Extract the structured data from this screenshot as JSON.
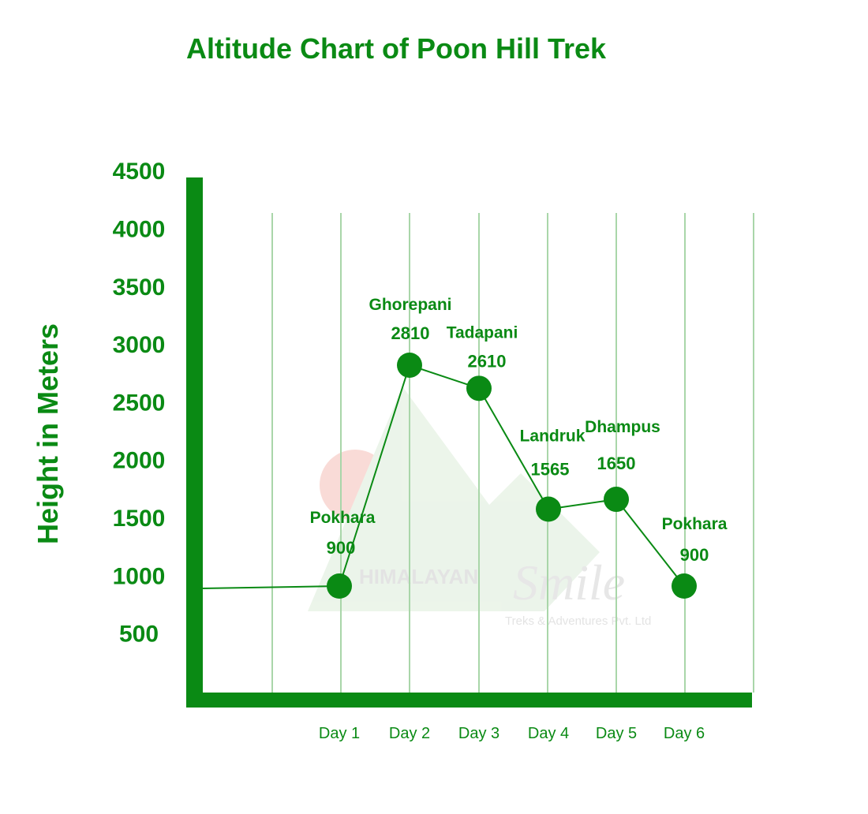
{
  "chart_data": {
    "type": "line",
    "title": "Altitude Chart of Poon Hill Trek",
    "xlabel": "",
    "ylabel": "Height in Meters",
    "yticks": [
      "4500",
      "4000",
      "3500",
      "3000",
      "2500",
      "2000",
      "1500",
      "1000",
      "500"
    ],
    "ytick_values": [
      4500,
      4000,
      3500,
      3000,
      2500,
      2000,
      1500,
      1000,
      500
    ],
    "categories": [
      "Day 1",
      "Day 2",
      "Day 3",
      "Day 4",
      "Day 5",
      "Day 6"
    ],
    "series": [
      {
        "name": "Altitude",
        "values": [
          900,
          2810,
          2610,
          1565,
          1650,
          900
        ],
        "point_labels": [
          "Pokhara",
          "Ghorepani",
          "Tadapani",
          "Landruk",
          "Dhampus",
          "Pokhara"
        ],
        "value_labels": [
          "900",
          "2810",
          "2610",
          "1565",
          "1650",
          "900"
        ],
        "start_value": 900
      }
    ],
    "grid": "vertical",
    "colors": {
      "main": "#0a8a14",
      "grid": "#a9d6a9"
    }
  },
  "watermark": {
    "brand": "HIMALAYAN Smile",
    "tagline": "Treks & Adventures Pvt. Ltd"
  }
}
